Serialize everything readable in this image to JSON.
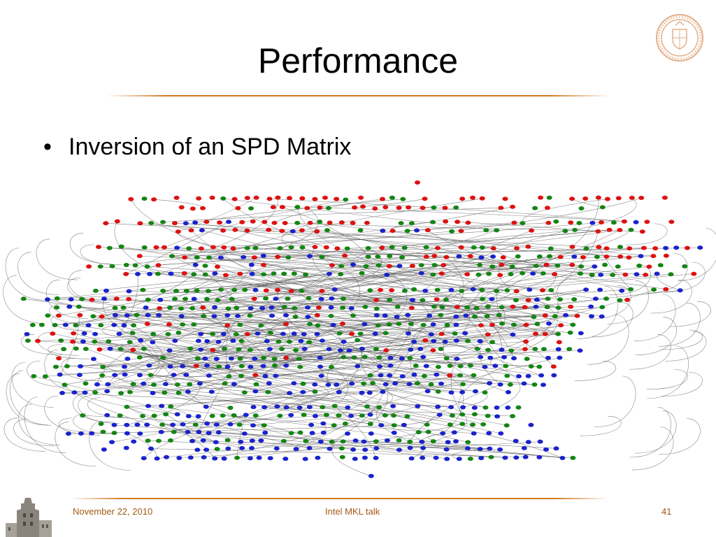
{
  "slide": {
    "title": "Performance",
    "bullets": [
      {
        "text": "Inversion of an SPD Matrix"
      }
    ]
  },
  "figure": {
    "type": "task-dependency-graph",
    "node_colors": [
      "#dd1111",
      "#138513",
      "#1a22cc"
    ],
    "edge_color": "#555555"
  },
  "footer": {
    "date": "November 22, 2010",
    "center": "Intel MKL talk",
    "page": "41"
  },
  "decor": {
    "seal_icon": "university-seal-icon",
    "tower_icon": "tower-building-icon",
    "accent": "#d2781f"
  }
}
